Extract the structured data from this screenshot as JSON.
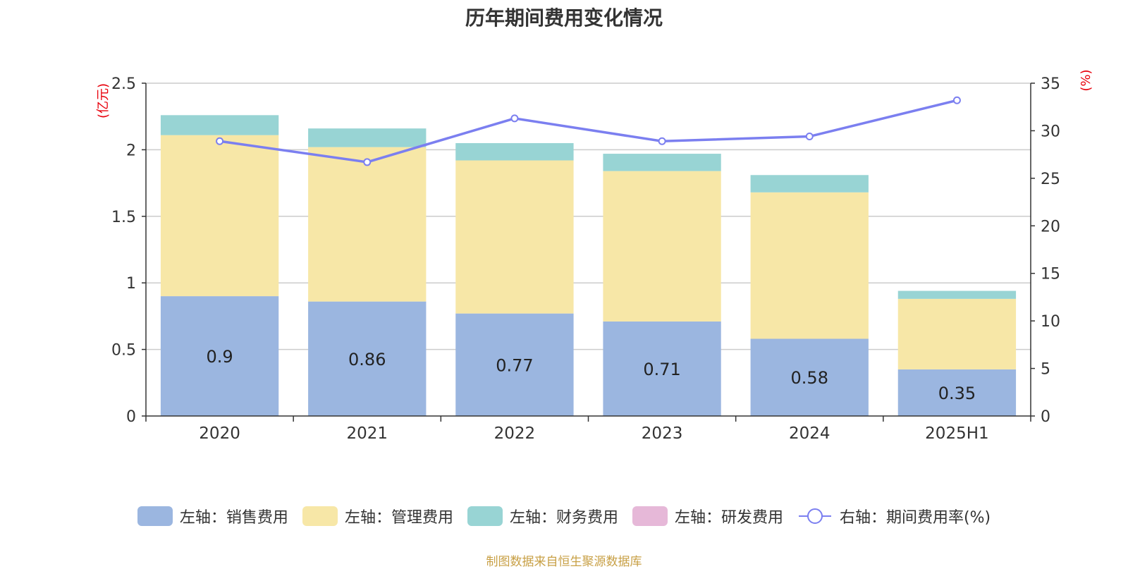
{
  "chart_data": {
    "type": "bar",
    "title": "历年期间费用变化情况",
    "categories": [
      "2020",
      "2021",
      "2022",
      "2023",
      "2024",
      "2025H1"
    ],
    "series": [
      {
        "name": "左轴：销售费用",
        "axis": "left",
        "color": "#9bb6e0",
        "values": [
          0.9,
          0.86,
          0.77,
          0.71,
          0.58,
          0.35
        ],
        "show_labels": true
      },
      {
        "name": "左轴：管理费用",
        "axis": "left",
        "color": "#f7e7a7",
        "values": [
          1.21,
          1.16,
          1.15,
          1.13,
          1.1,
          0.53
        ],
        "show_labels": false
      },
      {
        "name": "左轴：财务费用",
        "axis": "left",
        "color": "#98d4d4",
        "values": [
          0.15,
          0.14,
          0.13,
          0.13,
          0.13,
          0.06
        ],
        "show_labels": false
      },
      {
        "name": "左轴：研发费用",
        "axis": "left",
        "color": "#e6b8d8",
        "values": [
          0,
          0,
          0,
          0,
          0,
          0
        ],
        "show_labels": false
      },
      {
        "name": "右轴：期间费用率(%)",
        "axis": "right",
        "type": "line",
        "color": "#7b7ff0",
        "values": [
          28.9,
          26.7,
          31.3,
          28.9,
          29.4,
          33.2
        ]
      }
    ],
    "y_left": {
      "unit": "(亿元)",
      "ylim": [
        0,
        2.5
      ],
      "ticks": [
        "0",
        "0.5",
        "1",
        "1.5",
        "2",
        "2.5"
      ],
      "tick_values": [
        0,
        0.5,
        1,
        1.5,
        2,
        2.5
      ]
    },
    "y_right": {
      "unit": "(%)",
      "ylim": [
        0,
        35
      ],
      "ticks": [
        "0",
        "5",
        "10",
        "15",
        "20",
        "25",
        "30",
        "35"
      ],
      "tick_values": [
        0,
        5,
        10,
        15,
        20,
        25,
        30,
        35
      ]
    },
    "grid": true,
    "legend_position": "bottom",
    "unit_color": "#e8000b"
  },
  "source_note": "制图数据来自恒生聚源数据库"
}
